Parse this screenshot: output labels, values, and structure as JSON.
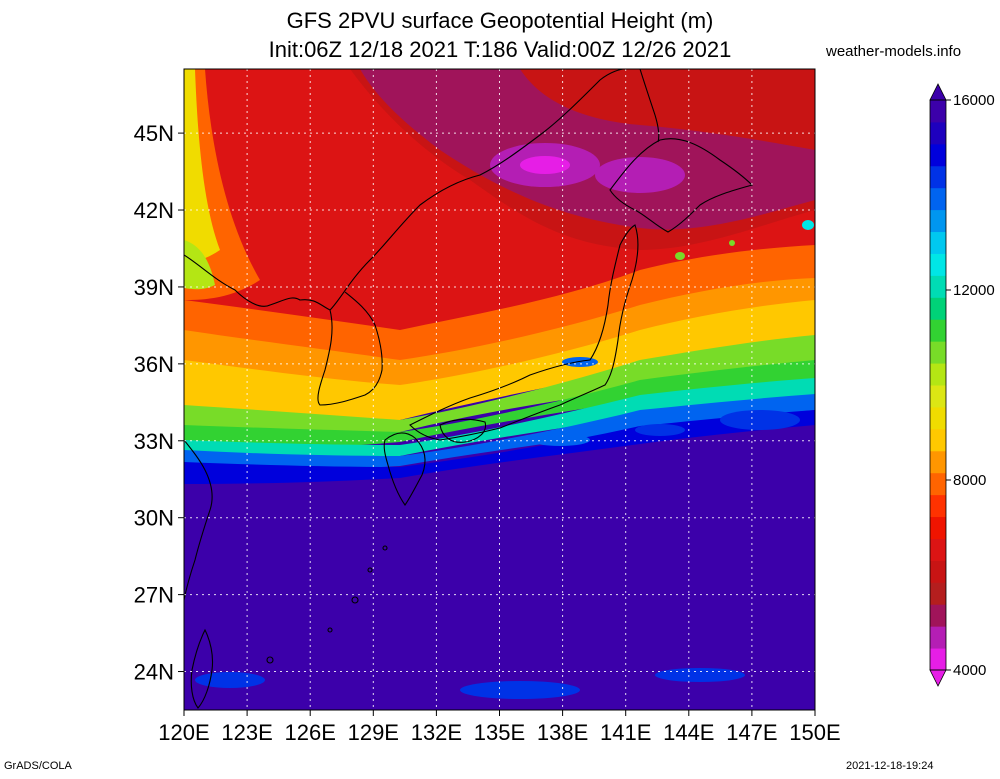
{
  "header": {
    "title_line1": "GFS 2PVU surface Geopotential Height (m)",
    "title_line2": "Init:06Z 12/18 2021 T:186 Valid:00Z 12/26 2021",
    "site": "weather-models.info"
  },
  "footer": {
    "left": "GrADS/COLA",
    "right": "2021-12-18-19:24"
  },
  "map": {
    "lon_range": [
      120,
      150
    ],
    "lat_range": [
      22.5,
      47.5
    ],
    "lat_ticks": [
      {
        "value": 24,
        "label": "24N"
      },
      {
        "value": 27,
        "label": "27N"
      },
      {
        "value": 30,
        "label": "30N"
      },
      {
        "value": 33,
        "label": "33N"
      },
      {
        "value": 36,
        "label": "36N"
      },
      {
        "value": 39,
        "label": "39N"
      },
      {
        "value": 42,
        "label": "42N"
      },
      {
        "value": 45,
        "label": "45N"
      }
    ],
    "lon_ticks": [
      {
        "value": 120,
        "label": "120E"
      },
      {
        "value": 123,
        "label": "123E"
      },
      {
        "value": 126,
        "label": "126E"
      },
      {
        "value": 129,
        "label": "129E"
      },
      {
        "value": 132,
        "label": "132E"
      },
      {
        "value": 135,
        "label": "135E"
      },
      {
        "value": 138,
        "label": "138E"
      },
      {
        "value": 141,
        "label": "141E"
      },
      {
        "value": 144,
        "label": "144E"
      },
      {
        "value": 147,
        "label": "147E"
      },
      {
        "value": 150,
        "label": "150E"
      }
    ],
    "grid": true
  },
  "colorbar": {
    "min": 4000,
    "max": 16000,
    "labels": [
      {
        "value": 4000,
        "label": "4000"
      },
      {
        "value": 8000,
        "label": "8000"
      },
      {
        "value": 12000,
        "label": "12000"
      },
      {
        "value": 16000,
        "label": "16000"
      }
    ],
    "colors": [
      "#e61ee6",
      "#b41eb4",
      "#a0145a",
      "#b41e1e",
      "#c81414",
      "#dc1414",
      "#f01400",
      "#ff3200",
      "#ff6400",
      "#ff9600",
      "#ffc800",
      "#f0dc00",
      "#dce614",
      "#b4e614",
      "#78dc28",
      "#32d232",
      "#00d278",
      "#00dcb4",
      "#00e6e6",
      "#00c8f0",
      "#0096f0",
      "#0064f0",
      "#0032e6",
      "#0000dc",
      "#1e00be",
      "#3c00aa"
    ]
  }
}
